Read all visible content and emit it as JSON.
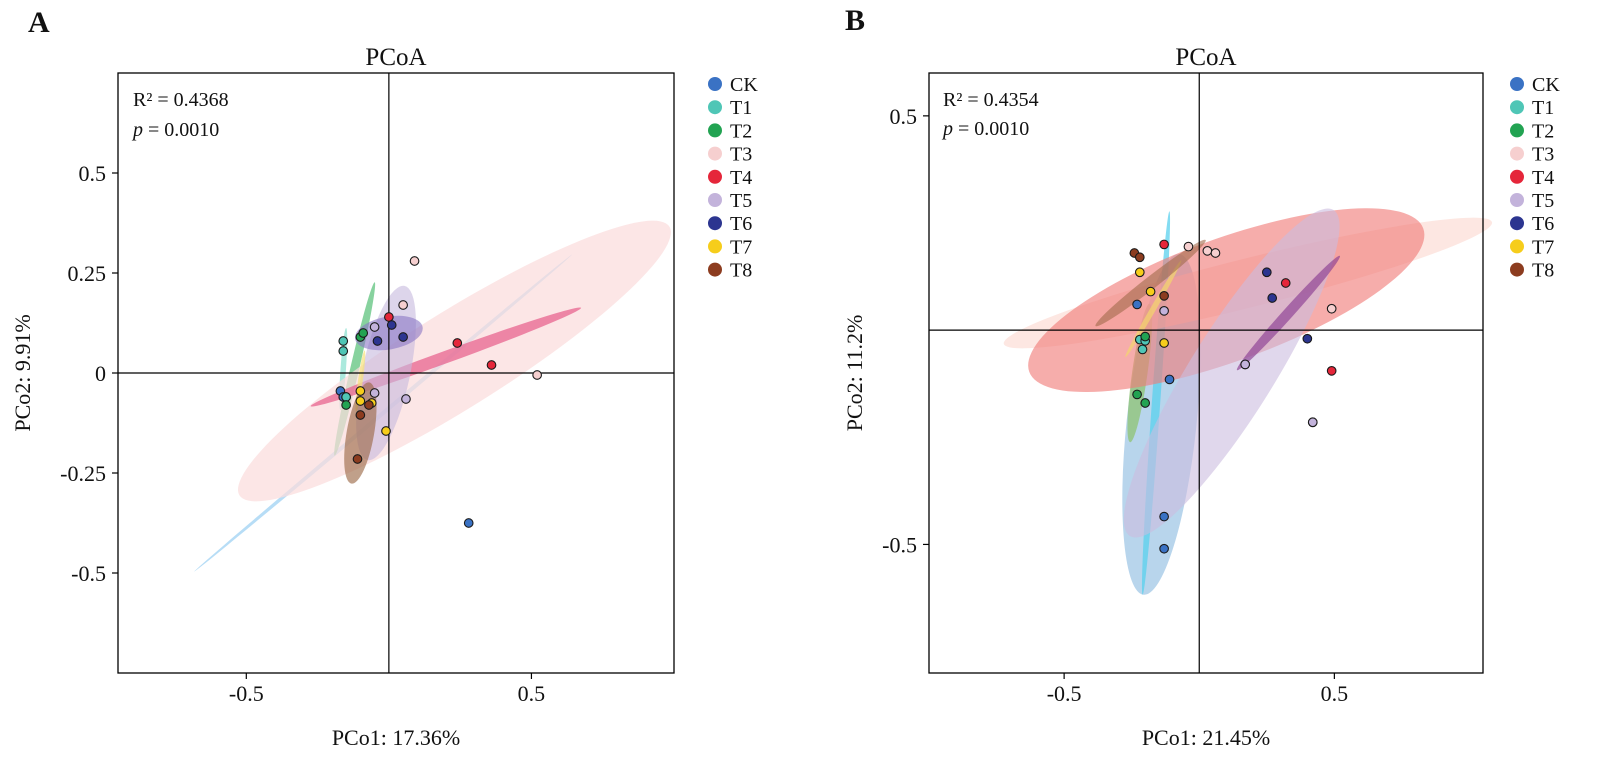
{
  "panels": [
    {
      "letter": "A",
      "title": "PCoA",
      "xlabel": "PCo1: 17.36%",
      "ylabel": "PCo2: 9.91%",
      "stat_r2": "R² = 0.4368",
      "stat_p_symbol": "p",
      "stat_p_value": " = 0.0010"
    },
    {
      "letter": "B",
      "title": "PCoA",
      "xlabel": "PCo1: 21.45%",
      "ylabel": "PCo2: 11.2%",
      "stat_r2": "R² = 0.4354",
      "stat_p_symbol": "p",
      "stat_p_value": " = 0.0010"
    }
  ],
  "chart_data": [
    {
      "type": "scatter",
      "title": "PCoA",
      "xlabel": "PCo1: 17.36%",
      "ylabel": "PCo2: 9.91%",
      "xlim": [
        -0.95,
        1.0
      ],
      "ylim": [
        -0.75,
        0.75
      ],
      "xticks": [
        {
          "value": -0.5,
          "label": "-0.5"
        },
        {
          "value": 0.5,
          "label": "0.5"
        }
      ],
      "yticks": [
        {
          "value": 0.5,
          "label": "0.5"
        },
        {
          "value": 0.25,
          "label": "0.25"
        },
        {
          "value": 0,
          "label": "0"
        },
        {
          "value": -0.25,
          "label": "-0.25"
        },
        {
          "value": -0.5,
          "label": "-0.5"
        }
      ],
      "series": [
        {
          "name": "CK",
          "color": "#3a72c4",
          "points": [
            [
              -0.17,
              -0.045
            ],
            [
              -0.16,
              -0.06
            ],
            [
              -0.15,
              -0.06
            ],
            [
              0.28,
              -0.375
            ]
          ],
          "ellipse": {
            "cx": -0.02,
            "cy": -0.1,
            "rx": 0.72,
            "ry": 0.006,
            "angle_deg": -40,
            "fill": "#9fd2f3",
            "opacity": 0.75
          }
        },
        {
          "name": "T1",
          "color": "#4fc6b6",
          "points": [
            [
              -0.16,
              0.08
            ],
            [
              -0.16,
              0.055
            ],
            [
              -0.15,
              -0.06
            ]
          ],
          "ellipse": {
            "cx": -0.16,
            "cy": 0.01,
            "rx": 0.12,
            "ry": 0.008,
            "angle_deg": -86,
            "fill": "#8fe2d2",
            "opacity": 0.75
          }
        },
        {
          "name": "T2",
          "color": "#22a352",
          "points": [
            [
              -0.1,
              0.09
            ],
            [
              -0.09,
              0.1
            ],
            [
              -0.15,
              -0.08
            ]
          ],
          "ellipse": {
            "cx": -0.12,
            "cy": 0.01,
            "rx": 0.26,
            "ry": 0.013,
            "angle_deg": -77,
            "fill": "#5fc37d",
            "opacity": 0.75
          }
        },
        {
          "name": "T3",
          "color": "#f6cfcf",
          "points": [
            [
              0.09,
              0.28
            ],
            [
              0.05,
              0.17
            ],
            [
              0.52,
              -0.005
            ]
          ],
          "ellipse": {
            "cx": 0.23,
            "cy": 0.03,
            "rx": 0.74,
            "ry": 0.14,
            "angle_deg": -32,
            "fill": "#fbdcdc",
            "opacity": 0.72
          }
        },
        {
          "name": "T4",
          "color": "#e5263a",
          "points": [
            [
              0.0,
              0.14
            ],
            [
              0.24,
              0.075
            ],
            [
              0.36,
              0.02
            ]
          ],
          "ellipse": {
            "cx": 0.2,
            "cy": 0.04,
            "rx": 0.42,
            "ry": 0.018,
            "angle_deg": -20,
            "fill": "#e8608c",
            "opacity": 0.72
          }
        },
        {
          "name": "T5",
          "color": "#c3b3db",
          "points": [
            [
              -0.05,
              0.115
            ],
            [
              -0.05,
              -0.05
            ],
            [
              0.06,
              -0.065
            ]
          ],
          "ellipse": {
            "cx": -0.01,
            "cy": 0.0,
            "rx": 0.26,
            "ry": 0.07,
            "angle_deg": -78,
            "fill": "#c6b9dd",
            "opacity": 0.6
          }
        },
        {
          "name": "T6",
          "color": "#2c3590",
          "points": [
            [
              -0.04,
              0.08
            ],
            [
              0.01,
              0.12
            ],
            [
              0.05,
              0.09
            ]
          ],
          "ellipse": {
            "cx": 0.0,
            "cy": 0.1,
            "rx": 0.1,
            "ry": 0.048,
            "angle_deg": -10,
            "fill": "#8a76c4",
            "opacity": 0.6
          }
        },
        {
          "name": "T7",
          "color": "#f6cd1b",
          "points": [
            [
              -0.1,
              -0.045
            ],
            [
              -0.1,
              -0.07
            ],
            [
              -0.06,
              -0.075
            ],
            [
              -0.01,
              -0.145
            ]
          ],
          "ellipse": {
            "cx": -0.1,
            "cy": -0.02,
            "rx": 0.09,
            "ry": 0.007,
            "angle_deg": -82,
            "fill": "#f6e27a",
            "opacity": 0.7
          }
        },
        {
          "name": "T8",
          "color": "#8c3c1f",
          "points": [
            [
              -0.1,
              -0.105
            ],
            [
              -0.11,
              -0.215
            ],
            [
              -0.07,
              -0.08
            ]
          ],
          "ellipse": {
            "cx": -0.1,
            "cy": -0.15,
            "rx": 0.15,
            "ry": 0.04,
            "angle_deg": -80,
            "fill": "#9a6642",
            "opacity": 0.62
          }
        }
      ]
    },
    {
      "type": "scatter",
      "title": "PCoA",
      "xlabel": "PCo1: 21.45%",
      "ylabel": "PCo2: 11.2%",
      "xlim": [
        -1.0,
        1.05
      ],
      "ylim": [
        -0.8,
        0.6
      ],
      "xticks": [
        {
          "value": -0.5,
          "label": "-0.5"
        },
        {
          "value": 0.5,
          "label": "0.5"
        }
      ],
      "yticks": [
        {
          "value": 0.5,
          "label": "0.5"
        },
        {
          "value": -0.5,
          "label": "-0.5"
        }
      ],
      "series": [
        {
          "name": "CK",
          "color": "#3a72c4",
          "points": [
            [
              -0.23,
              0.06
            ],
            [
              -0.11,
              -0.115
            ],
            [
              -0.13,
              -0.435
            ],
            [
              -0.13,
              -0.51
            ]
          ],
          "ellipse": {
            "cx": -0.14,
            "cy": -0.22,
            "rx": 0.49,
            "ry": 0.1,
            "angle_deg": -84,
            "fill": "#7db2dd",
            "opacity": 0.55
          }
        },
        {
          "name": "T1",
          "color": "#4fc6b6",
          "points": [
            [
              -0.22,
              -0.022
            ],
            [
              -0.21,
              -0.045
            ],
            [
              -0.2,
              -0.025
            ]
          ],
          "ellipse": {
            "cx": -0.16,
            "cy": -0.17,
            "rx": 0.55,
            "ry": 0.012,
            "angle_deg": -86,
            "fill": "#5ad0ee",
            "opacity": 0.75
          }
        },
        {
          "name": "T2",
          "color": "#22a352",
          "points": [
            [
              -0.2,
              -0.015
            ],
            [
              -0.23,
              -0.15
            ],
            [
              -0.2,
              -0.17
            ]
          ],
          "ellipse": {
            "cx": -0.22,
            "cy": -0.1,
            "rx": 0.2,
            "ry": 0.022,
            "angle_deg": -82,
            "fill": "#8ec46d",
            "opacity": 0.72
          }
        },
        {
          "name": "T3",
          "color": "#f6cfcf",
          "points": [
            [
              -0.04,
              0.195
            ],
            [
              0.03,
              0.185
            ],
            [
              0.06,
              0.18
            ],
            [
              0.49,
              0.05
            ],
            [
              0.17,
              -0.08
            ],
            [
              0.42,
              -0.215
            ]
          ],
          "ellipse": {
            "cx": 0.18,
            "cy": 0.11,
            "rx": 0.72,
            "ry": 0.07,
            "angle_deg": -14,
            "fill": "#fbd7cf",
            "opacity": 0.6
          }
        },
        {
          "name": "T4",
          "color": "#e5263a",
          "points": [
            [
              -0.13,
              0.2
            ],
            [
              0.32,
              0.11
            ],
            [
              0.49,
              -0.095
            ]
          ],
          "ellipse": {
            "cx": 0.1,
            "cy": 0.07,
            "rx": 0.6,
            "ry": 0.175,
            "angle_deg": -20,
            "fill": "#f07a78",
            "opacity": 0.62
          }
        },
        {
          "name": "T5",
          "color": "#c3b3db",
          "points": [
            [
              -0.13,
              0.045
            ],
            [
              0.17,
              -0.08
            ],
            [
              0.42,
              -0.215
            ]
          ],
          "ellipse": {
            "cx": 0.12,
            "cy": -0.1,
            "rx": 0.55,
            "ry": 0.12,
            "angle_deg": -58,
            "fill": "#cbbde0",
            "opacity": 0.6
          }
        },
        {
          "name": "T6",
          "color": "#2c3590",
          "points": [
            [
              0.25,
              0.135
            ],
            [
              0.27,
              0.075
            ],
            [
              0.4,
              -0.02
            ]
          ],
          "ellipse": {
            "cx": 0.33,
            "cy": 0.04,
            "rx": 0.22,
            "ry": 0.015,
            "angle_deg": -48,
            "fill": "#8b3d92",
            "opacity": 0.65
          }
        },
        {
          "name": "T7",
          "color": "#f6cd1b",
          "points": [
            [
              -0.22,
              0.135
            ],
            [
              -0.18,
              0.09
            ],
            [
              -0.13,
              -0.03
            ]
          ],
          "ellipse": {
            "cx": -0.17,
            "cy": 0.05,
            "rx": 0.16,
            "ry": 0.008,
            "angle_deg": -60,
            "fill": "#f3d66c",
            "opacity": 0.7
          }
        },
        {
          "name": "T8",
          "color": "#8c3c1f",
          "points": [
            [
              -0.24,
              0.18
            ],
            [
              -0.22,
              0.17
            ],
            [
              -0.13,
              0.08
            ]
          ],
          "ellipse": {
            "cx": -0.18,
            "cy": 0.11,
            "rx": 0.2,
            "ry": 0.018,
            "angle_deg": -38,
            "fill": "#a26a4b",
            "opacity": 0.6
          }
        }
      ]
    }
  ]
}
